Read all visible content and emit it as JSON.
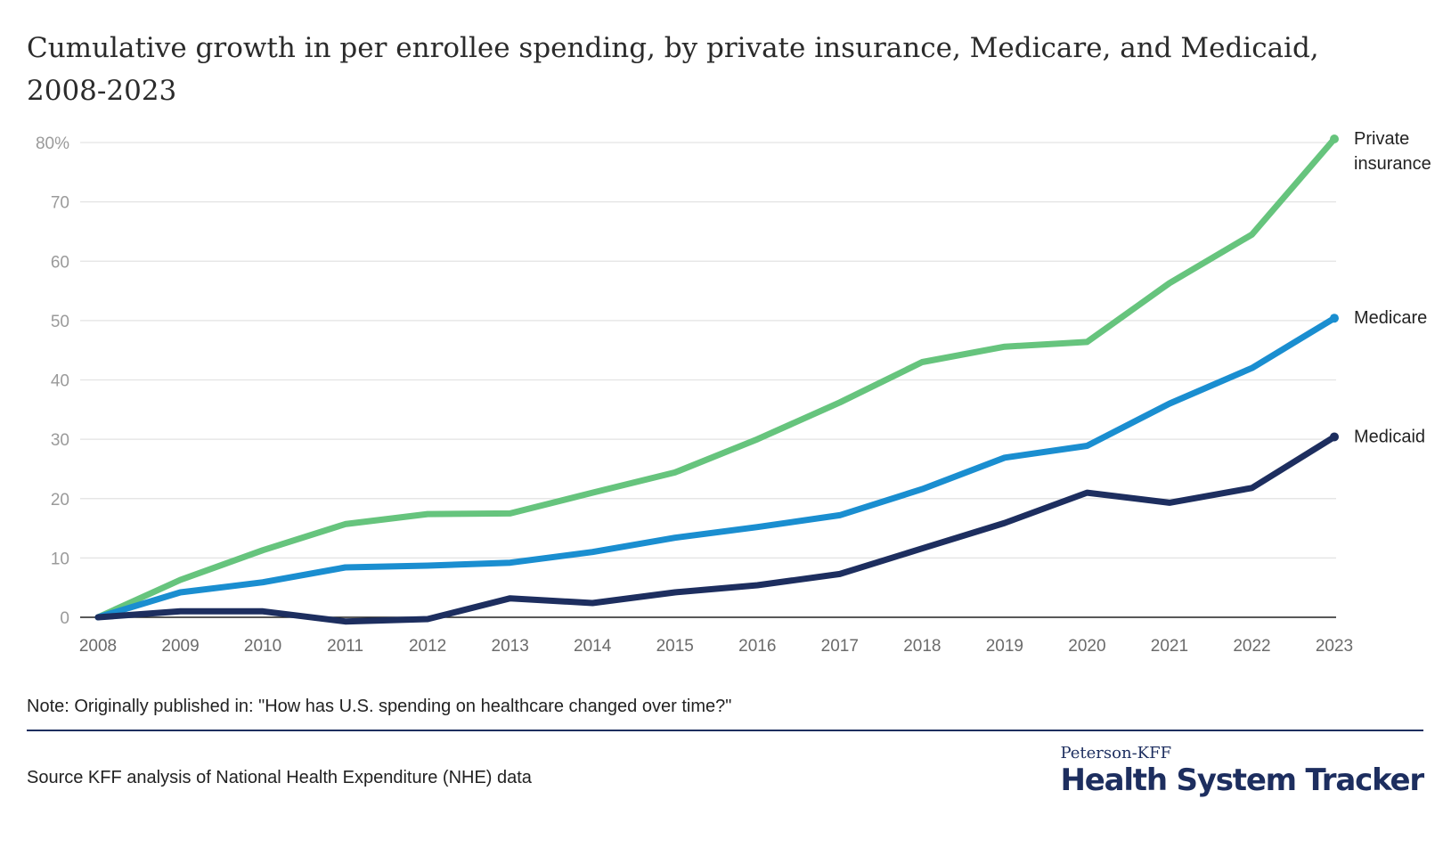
{
  "chart_data": {
    "type": "line",
    "title": "Cumulative growth in per enrollee spending, by private insurance, Medicare, and Medicaid, 2008-2023",
    "x": [
      2008,
      2009,
      2010,
      2011,
      2012,
      2013,
      2014,
      2015,
      2016,
      2017,
      2018,
      2019,
      2020,
      2021,
      2022,
      2023
    ],
    "y_ticks": [
      "0",
      "10",
      "20",
      "30",
      "40",
      "50",
      "60",
      "70",
      "80%"
    ],
    "ylim": [
      0,
      80
    ],
    "grid": true,
    "legend": "inline labels at line ends (right)",
    "series": [
      {
        "name": "Private insurance",
        "label_lines": [
          "Private",
          "insurance"
        ],
        "color": "#66c47d",
        "values": [
          0,
          6.3,
          11.3,
          15.7,
          17.4,
          17.5,
          21.0,
          24.4,
          30.0,
          36.2,
          43.0,
          45.6,
          46.4,
          56.3,
          64.5,
          80.6
        ]
      },
      {
        "name": "Medicare",
        "label_lines": [
          "Medicare"
        ],
        "color": "#1a8ed0",
        "values": [
          0,
          4.2,
          5.9,
          8.4,
          8.7,
          9.2,
          11.0,
          13.4,
          15.2,
          17.2,
          21.6,
          26.9,
          28.9,
          36.0,
          42.0,
          50.4
        ]
      },
      {
        "name": "Medicaid",
        "label_lines": [
          "Medicaid"
        ],
        "color": "#1d2e5f",
        "values": [
          0,
          1.0,
          1.0,
          -0.7,
          -0.3,
          3.2,
          2.4,
          4.2,
          5.4,
          7.3,
          11.6,
          15.9,
          21.0,
          19.3,
          21.8,
          30.4
        ]
      }
    ]
  },
  "note": "Note: Originally published in: \"How has U.S. spending on healthcare changed over time?\"",
  "source": "Source KFF analysis of National Health Expenditure (NHE) data",
  "logo": {
    "top": "Peterson-KFF",
    "main": "Health System Tracker"
  }
}
